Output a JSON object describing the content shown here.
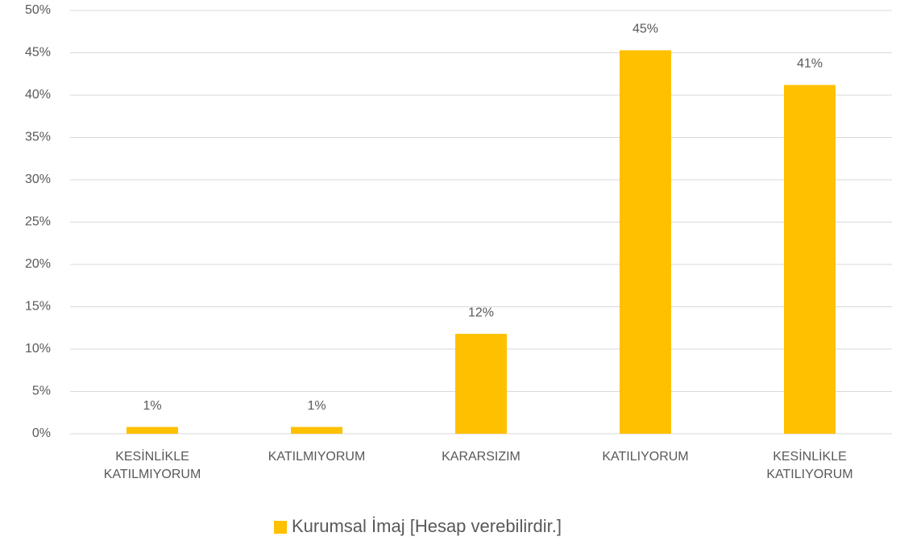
{
  "chart_data": {
    "type": "bar",
    "categories": [
      "KESİNLİKLE KATILMIYORUM",
      "KATILMIYORUM",
      "KARARSIZIM",
      "KATILIYORUM",
      "KESİNLİKLE KATILIYORUM"
    ],
    "series": [
      {
        "name": "Kurumsal İmaj [Hesap verebilirdir.]",
        "color": "#ffc000",
        "values": [
          0.8,
          0.8,
          11.8,
          45.3,
          41.2
        ],
        "value_labels": [
          "1%",
          "1%",
          "12%",
          "45%",
          "41%"
        ]
      }
    ],
    "ylim": [
      0,
      50
    ],
    "yticks": [
      {
        "value": 0,
        "label": "0%"
      },
      {
        "value": 5,
        "label": "5%"
      },
      {
        "value": 10,
        "label": "10%"
      },
      {
        "value": 15,
        "label": "15%"
      },
      {
        "value": 20,
        "label": "20%"
      },
      {
        "value": 25,
        "label": "25%"
      },
      {
        "value": 30,
        "label": "30%"
      },
      {
        "value": 35,
        "label": "35%"
      },
      {
        "value": 40,
        "label": "40%"
      },
      {
        "value": 45,
        "label": "45%"
      },
      {
        "value": 50,
        "label": "50%"
      }
    ],
    "grid": true,
    "legend": "bottom"
  }
}
